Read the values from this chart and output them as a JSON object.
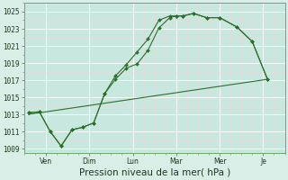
{
  "xlabel": "Pression niveau de la mer( hPa )",
  "bg_color": "#daeee8",
  "plot_bg_color": "#c8e8df",
  "grid_major_color": "#ffffff",
  "grid_minor_color": "#e8d8d8",
  "line_color": "#2d6e2d",
  "ylim": [
    1008.5,
    1026.0
  ],
  "yticks": [
    1009,
    1011,
    1013,
    1015,
    1017,
    1019,
    1021,
    1023,
    1025
  ],
  "x_labels": [
    "Ven",
    "Dim",
    "Lun",
    "Mar",
    "Mer",
    "Je"
  ],
  "x_tick_positions": [
    1,
    3,
    5,
    7,
    9,
    11
  ],
  "xlim": [
    0,
    12
  ],
  "series1": {
    "x": [
      0.2,
      0.7,
      1.2,
      1.7,
      2.2,
      2.7,
      3.2,
      3.7,
      4.2,
      4.7,
      5.2,
      5.7,
      6.2,
      6.7,
      7.0,
      7.3,
      7.8,
      8.4,
      9.0,
      9.8,
      10.5,
      11.2
    ],
    "y": [
      1013.2,
      1013.3,
      1011.0,
      1009.3,
      1011.2,
      1011.5,
      1012.0,
      1015.4,
      1017.1,
      1018.4,
      1018.9,
      1020.5,
      1023.1,
      1024.3,
      1024.5,
      1024.5,
      1024.8,
      1024.3,
      1024.3,
      1023.2,
      1021.5,
      1017.1
    ]
  },
  "series2": {
    "x": [
      0.2,
      0.7,
      1.2,
      1.7,
      2.2,
      2.7,
      3.2,
      3.7,
      4.2,
      4.7,
      5.2,
      5.7,
      6.2,
      6.7,
      7.0,
      7.3,
      7.8,
      8.4,
      9.0,
      9.8,
      10.5,
      11.2
    ],
    "y": [
      1013.2,
      1013.3,
      1011.0,
      1009.3,
      1011.2,
      1011.5,
      1012.0,
      1015.4,
      1017.5,
      1018.8,
      1020.3,
      1021.8,
      1024.0,
      1024.5,
      1024.5,
      1024.5,
      1024.8,
      1024.3,
      1024.3,
      1023.2,
      1021.5,
      1017.1
    ]
  },
  "trend_line": {
    "x": [
      0.2,
      11.2
    ],
    "y": [
      1013.0,
      1017.1
    ]
  },
  "xlabel_fontsize": 7.5,
  "tick_fontsize": 5.5
}
